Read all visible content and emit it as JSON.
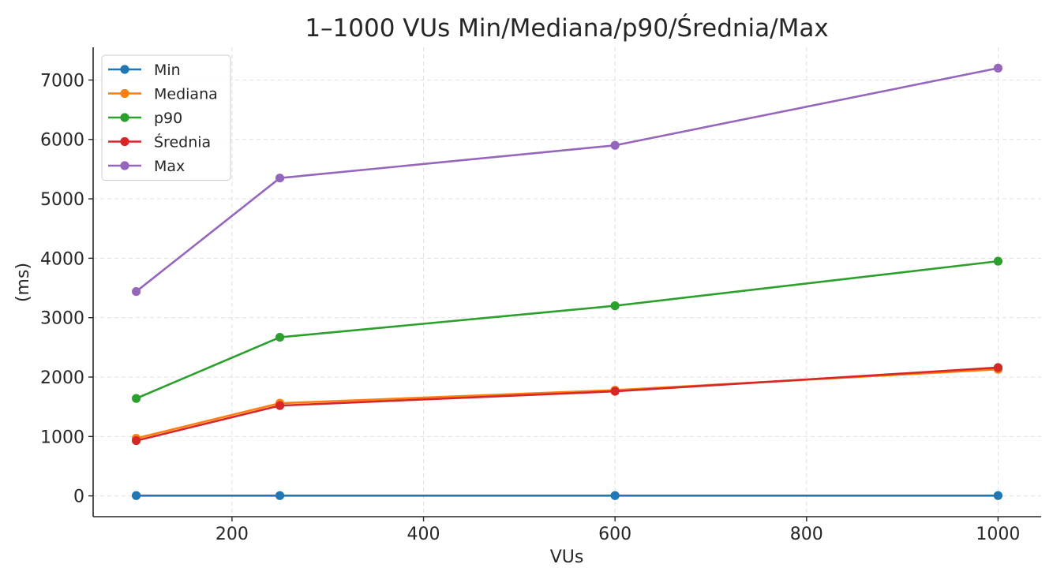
{
  "chart_data": {
    "type": "line",
    "title": "1–1000 VUs Min/Mediana/p90/Średnia/Max",
    "xlabel": "VUs",
    "ylabel": "(ms)",
    "x": [
      100,
      250,
      600,
      1000
    ],
    "xlim": [
      55,
      1045
    ],
    "ylim": [
      -350,
      7550
    ],
    "xticks": [
      200,
      400,
      600,
      800,
      1000
    ],
    "yticks": [
      0,
      1000,
      2000,
      3000,
      4000,
      5000,
      6000,
      7000
    ],
    "grid": true,
    "legend_position": "top-left",
    "series": [
      {
        "name": "Min",
        "color": "#1f77b4",
        "values": [
          5,
          5,
          5,
          5
        ]
      },
      {
        "name": "Mediana",
        "color": "#ff7f0e",
        "values": [
          970,
          1560,
          1780,
          2130
        ]
      },
      {
        "name": "p90",
        "color": "#2ca02c",
        "values": [
          1640,
          2670,
          3200,
          3950
        ]
      },
      {
        "name": "Średnia",
        "color": "#d62728",
        "values": [
          930,
          1520,
          1760,
          2160
        ]
      },
      {
        "name": "Max",
        "color": "#9467bd",
        "values": [
          3440,
          5350,
          5900,
          7200
        ]
      }
    ]
  }
}
